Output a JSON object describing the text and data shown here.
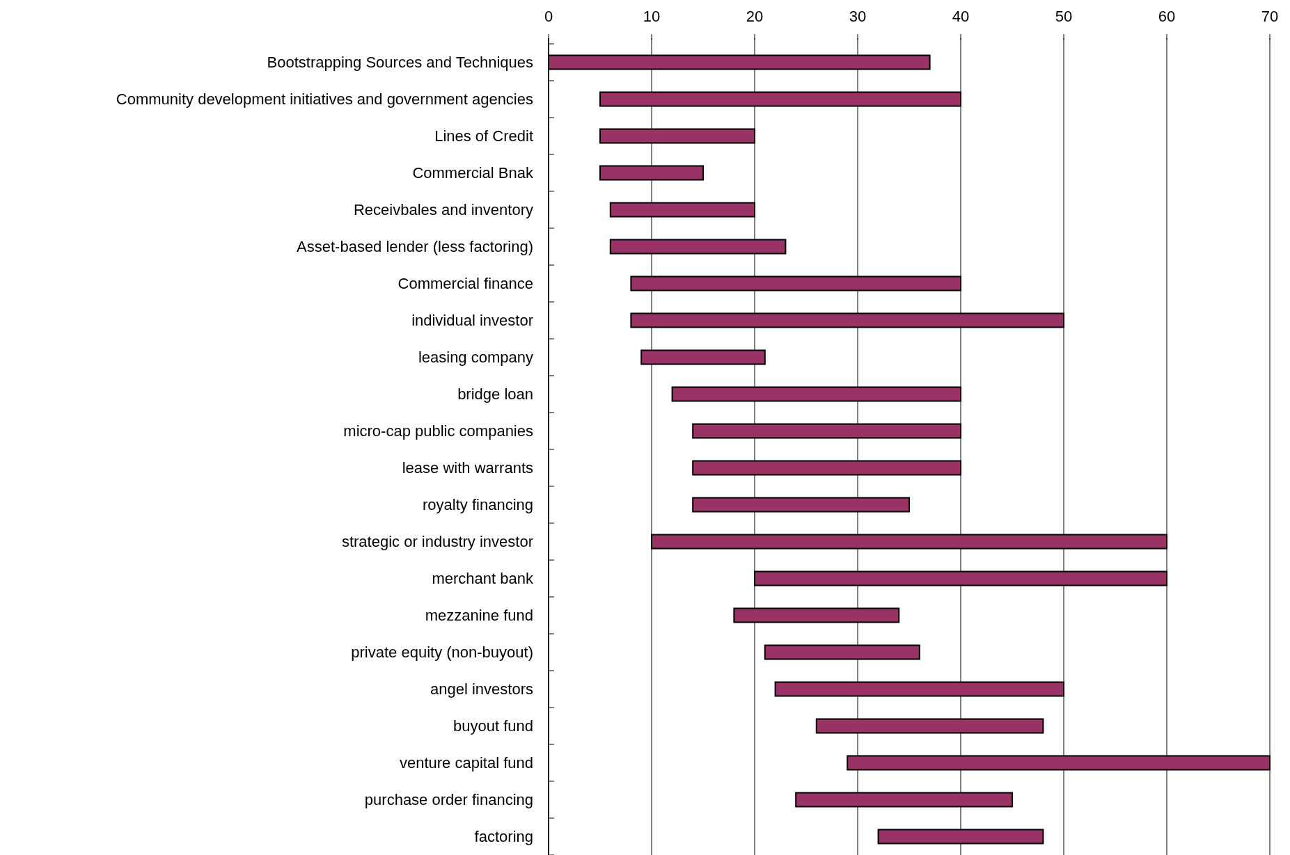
{
  "chart_data": {
    "type": "bar",
    "orientation": "horizontal",
    "categories": [
      "Bootstrapping Sources and Techniques",
      "Community development initiatives and government agencies",
      "Lines of Credit",
      "Commercial Bnak",
      "Receivbales and inventory",
      "Asset-based lender (less factoring)",
      "Commercial finance",
      "individual investor",
      "leasing company",
      "bridge loan",
      "micro-cap public companies",
      "lease with warrants",
      "royalty financing",
      "strategic or industry investor",
      "merchant bank",
      "mezzanine fund",
      "private equity (non-buyout)",
      "angel investors",
      "buyout fund",
      "venture capital fund",
      "purchase order financing",
      "factoring"
    ],
    "base": [
      0,
      5,
      5,
      5,
      6,
      6,
      8,
      8,
      9,
      12,
      14,
      14,
      14,
      10,
      20,
      18,
      21,
      22,
      26,
      29,
      24,
      32
    ],
    "values": [
      37,
      35,
      15,
      10,
      14,
      17,
      32,
      42,
      12,
      28,
      26,
      26,
      21,
      50,
      40,
      16,
      15,
      28,
      22,
      41,
      21,
      16
    ],
    "color": "#993366",
    "xlim": [
      0,
      70
    ],
    "xticks": [
      0,
      10,
      20,
      30,
      40,
      50,
      60,
      70
    ],
    "grid": "x"
  }
}
